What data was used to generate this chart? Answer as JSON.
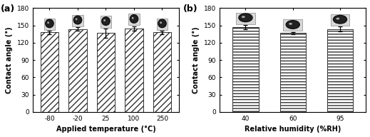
{
  "panel_a": {
    "label": "(a)",
    "x_labels": [
      "-80",
      "-20",
      "25",
      "100",
      "250"
    ],
    "values": [
      138,
      144,
      137,
      145,
      138
    ],
    "errors": [
      3,
      3,
      8,
      4,
      3
    ],
    "xlabel": "Applied temperature (°C)",
    "ylabel": "Contact angle (°)",
    "ylim": [
      0,
      180
    ],
    "yticks": [
      0,
      30,
      60,
      90,
      120,
      150,
      180
    ],
    "hatch": "////",
    "bar_color": "white",
    "bar_edgecolor": "#333333",
    "bar_width": 0.65
  },
  "panel_b": {
    "label": "(b)",
    "x_labels": [
      "40",
      "60",
      "95"
    ],
    "values": [
      147,
      137,
      144
    ],
    "errors": [
      4,
      2,
      4
    ],
    "xlabel": "Relative humidity (%RH)",
    "ylabel": "Contact angle (°)",
    "ylim": [
      0,
      180
    ],
    "yticks": [
      0,
      30,
      60,
      90,
      120,
      150,
      180
    ],
    "hatch": "----",
    "bar_color": "white",
    "bar_edgecolor": "#333333",
    "bar_width": 0.55
  },
  "figure_bgcolor": "#ffffff",
  "axes_bgcolor": "#ffffff"
}
